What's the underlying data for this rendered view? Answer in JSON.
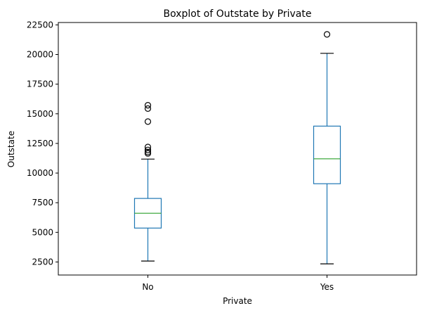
{
  "chart_data": {
    "type": "boxplot",
    "title": "Boxplot of Outstate by Private",
    "xlabel": "Private",
    "ylabel": "Outstate",
    "categories": [
      "No",
      "Yes"
    ],
    "ylim": [
      1400,
      22700
    ],
    "yticks": [
      2500,
      5000,
      7500,
      10000,
      12500,
      15000,
      17500,
      20000,
      22500
    ],
    "grid": false,
    "colors": {
      "box": "#1f77b4",
      "median": "#2ca02c",
      "whisker_cap": "#000000",
      "outlier": "#000000"
    },
    "boxes": [
      {
        "category": "No",
        "whisker_low": 2580,
        "q1": 5360,
        "median": 6610,
        "q3": 7860,
        "whisker_high": 11180,
        "outliers": [
          11660,
          11780,
          11950,
          12200,
          14340,
          15440,
          15720
        ]
      },
      {
        "category": "Yes",
        "whisker_low": 2340,
        "q1": 9100,
        "median": 11200,
        "q3": 13960,
        "whisker_high": 20100,
        "outliers": [
          21700
        ]
      }
    ]
  }
}
